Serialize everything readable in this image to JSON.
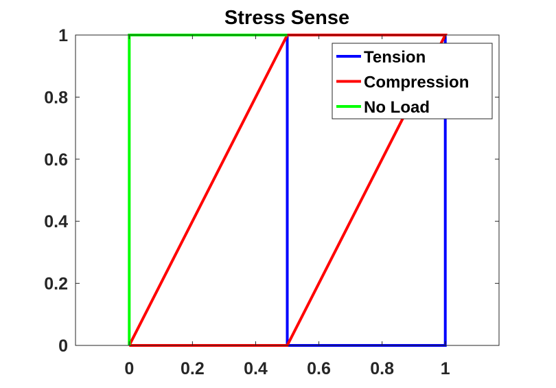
{
  "chart_data": {
    "type": "line",
    "title": "Stress Sense",
    "xlabel": "",
    "ylabel": "",
    "xlim": [
      -0.17,
      1.17
    ],
    "ylim": [
      0,
      1
    ],
    "xticks": [
      0,
      0.2,
      0.4,
      0.6,
      0.8,
      1
    ],
    "xtick_labels": [
      "0",
      "0.2",
      "0.4",
      "0.6",
      "0.8",
      "1"
    ],
    "yticks": [
      0,
      0.2,
      0.4,
      0.6,
      0.8,
      1
    ],
    "ytick_labels": [
      "0",
      "0.2",
      "0.4",
      "0.6",
      "0.8",
      "1"
    ],
    "grid": false,
    "legend_position": "top-right",
    "series": [
      {
        "name": "Tension",
        "color": "#0000ff",
        "x": [
          0.5,
          0.5,
          1,
          1,
          0.5
        ],
        "y": [
          0,
          1,
          1,
          0,
          0
        ]
      },
      {
        "name": "Compression",
        "color": "#ff0000",
        "x": [
          0,
          0.5,
          0.5,
          1,
          1,
          0.5,
          0.5,
          0
        ],
        "y": [
          0,
          1,
          1,
          1,
          1,
          0,
          0,
          0
        ]
      },
      {
        "name": "No Load",
        "color": "#00ff00",
        "x": [
          0,
          0,
          0.5
        ],
        "y": [
          0,
          1,
          1
        ]
      }
    ]
  }
}
